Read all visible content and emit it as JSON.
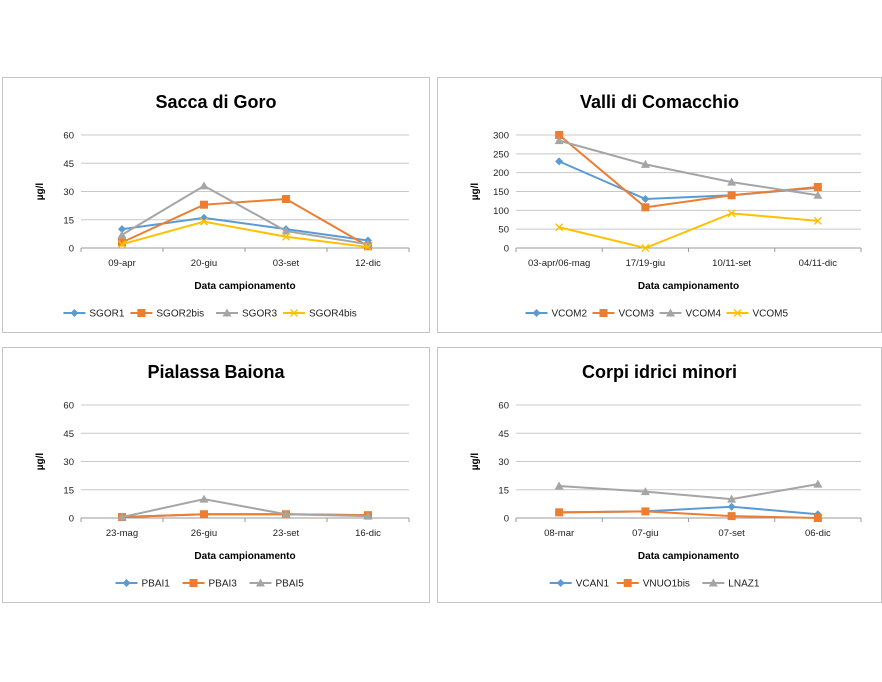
{
  "chart_data": [
    {
      "type": "line",
      "title": "Sacca di Goro",
      "xlabel": "Data campionamento",
      "ylabel": "µg/l",
      "ylim": [
        0,
        60
      ],
      "yticks": [
        0,
        15,
        30,
        45,
        60
      ],
      "categories": [
        "09-apr",
        "20-giu",
        "03-set",
        "12-dic"
      ],
      "series": [
        {
          "name": "SGOR1",
          "color": "#5b9bd5",
          "marker": "diamond",
          "values": [
            10,
            16,
            10,
            4
          ]
        },
        {
          "name": "SGOR2bis",
          "color": "#ed7d31",
          "marker": "square",
          "values": [
            3,
            23,
            26,
            1
          ]
        },
        {
          "name": "SGOR3",
          "color": "#a5a5a5",
          "marker": "triangle",
          "values": [
            7,
            33,
            9,
            2
          ]
        },
        {
          "name": "SGOR4bis",
          "color": "#ffc000",
          "marker": "x",
          "values": [
            2,
            14,
            6,
            0.5
          ]
        }
      ]
    },
    {
      "type": "line",
      "title": "Valli di Comacchio",
      "xlabel": "Data campionamento",
      "ylabel": "µg/l",
      "ylim": [
        0,
        300
      ],
      "yticks": [
        0,
        50,
        100,
        150,
        200,
        250,
        300
      ],
      "categories": [
        "03-apr/06-mag",
        "17/19-giu",
        "10/11-set",
        "04/11-dic"
      ],
      "series": [
        {
          "name": "VCOM2",
          "color": "#5b9bd5",
          "marker": "diamond",
          "values": [
            230,
            130,
            140,
            160
          ]
        },
        {
          "name": "VCOM3",
          "color": "#ed7d31",
          "marker": "square",
          "values": [
            300,
            108,
            140,
            162
          ]
        },
        {
          "name": "VCOM4",
          "color": "#a5a5a5",
          "marker": "triangle",
          "values": [
            285,
            222,
            175,
            140
          ]
        },
        {
          "name": "VCOM5",
          "color": "#ffc000",
          "marker": "x",
          "values": [
            55,
            0,
            92,
            72
          ]
        }
      ]
    },
    {
      "type": "line",
      "title": "Pialassa Baiona",
      "xlabel": "Data campionamento",
      "ylabel": "µg/l",
      "ylim": [
        0,
        60
      ],
      "yticks": [
        0,
        15,
        30,
        45,
        60
      ],
      "categories": [
        "23-mag",
        "26-giu",
        "23-set",
        "16-dic"
      ],
      "series": [
        {
          "name": "PBAI1",
          "color": "#5b9bd5",
          "marker": "diamond",
          "values": [
            0.5,
            2,
            2,
            1.5
          ]
        },
        {
          "name": "PBAI3",
          "color": "#ed7d31",
          "marker": "square",
          "values": [
            0.5,
            2,
            2,
            1.5
          ]
        },
        {
          "name": "PBAI5",
          "color": "#a5a5a5",
          "marker": "triangle",
          "values": [
            0.5,
            10,
            2,
            1
          ]
        }
      ]
    },
    {
      "type": "line",
      "title": "Corpi idrici minori",
      "xlabel": "Data campionamento",
      "ylabel": "µg/l",
      "ylim": [
        0,
        60
      ],
      "yticks": [
        0,
        15,
        30,
        45,
        60
      ],
      "categories": [
        "08-mar",
        "07-giu",
        "07-set",
        "06-dic"
      ],
      "series": [
        {
          "name": "VCAN1",
          "color": "#5b9bd5",
          "marker": "diamond",
          "values": [
            3,
            3.5,
            6,
            2
          ]
        },
        {
          "name": "VNUO1bis",
          "color": "#ed7d31",
          "marker": "square",
          "values": [
            3,
            3.5,
            1,
            0
          ]
        },
        {
          "name": "LNAZ1",
          "color": "#a5a5a5",
          "marker": "triangle",
          "values": [
            17,
            14,
            10,
            18
          ]
        }
      ]
    }
  ]
}
